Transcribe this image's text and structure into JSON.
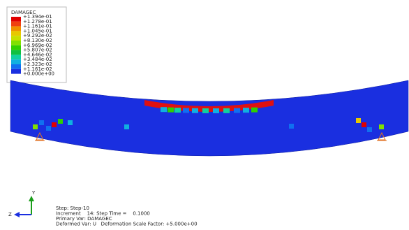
{
  "legend": {
    "title": "DAMAGEC",
    "labels": [
      "+1.394e-01",
      "+1.278e-01",
      "+1.161e-01",
      "+1.045e-01",
      "+9.292e-02",
      "+8.130e-02",
      "+6.969e-02",
      "+5.807e-02",
      "+4.646e-02",
      "+3.484e-02",
      "+2.323e-02",
      "+1.161e-02",
      "+0.000e+00"
    ]
  },
  "triad": {
    "y": "Y",
    "z": "Z"
  },
  "info": {
    "lines": [
      "Step: Step-10",
      "Increment    14: Step Time =    0.1000",
      "Primary Var: DAMAGEC",
      "Deformed Var: U   Deformation Scale Factor: +5.000e+00"
    ]
  }
}
